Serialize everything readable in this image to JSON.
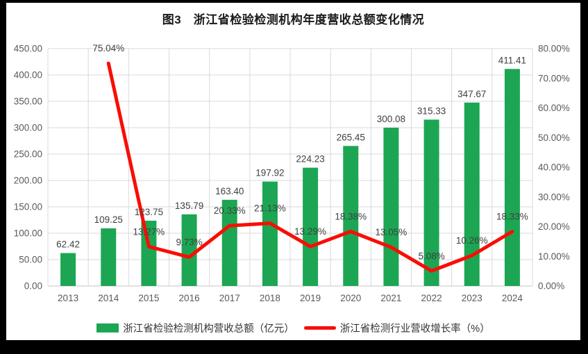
{
  "frame": {
    "background": "#000000",
    "panel_background": "#ffffff"
  },
  "title": "图3　浙江省检验检测机构年度营收总额变化情况",
  "colors": {
    "bar": "#1CA653",
    "line": "#F90D05",
    "grid": "#D9D9D9",
    "grid_base": "#C6C6C6",
    "axis_text": "#595959",
    "data_label_text": "#404040",
    "title_text": "#1a1a1a",
    "legend_text": "#333333"
  },
  "chart_data": {
    "type": "bar+line combo",
    "title": "图3　浙江省检验检测机构年度营收总额变化情况",
    "categories": [
      "2013",
      "2014",
      "2015",
      "2016",
      "2017",
      "2018",
      "2019",
      "2020",
      "2021",
      "2022",
      "2023",
      "2024"
    ],
    "series": [
      {
        "name": "浙江省检验检测机构营收总额（亿元）",
        "type": "bar",
        "axis": "left",
        "values": [
          62.42,
          109.25,
          123.75,
          135.79,
          163.4,
          197.92,
          224.23,
          265.45,
          300.08,
          315.33,
          347.67,
          411.41
        ],
        "labels": [
          "62.42",
          "109.25",
          "123.75",
          "135.79",
          "163.40",
          "197.92",
          "224.23",
          "265.45",
          "300.08",
          "315.33",
          "347.67",
          "411.41"
        ]
      },
      {
        "name": "浙江省检测行业营收增长率（%）",
        "type": "line",
        "axis": "right",
        "values": [
          null,
          75.04,
          13.27,
          9.73,
          20.33,
          21.13,
          13.29,
          18.38,
          13.05,
          5.08,
          10.26,
          18.33
        ],
        "labels": [
          null,
          "75.04%",
          "13.27%",
          "9.73%",
          "20.33%",
          "21.13%",
          "13.29%",
          "18.38%",
          "13.05%",
          "5.08%",
          "10.26%",
          "18.33%"
        ]
      }
    ],
    "left_axis": {
      "min": 0,
      "max": 450,
      "step": 50,
      "tick_labels": [
        "0.00",
        "50.00",
        "100.00",
        "150.00",
        "200.00",
        "250.00",
        "300.00",
        "350.00",
        "400.00",
        "450.00"
      ]
    },
    "right_axis": {
      "min": 0,
      "max": 80,
      "step": 10,
      "tick_labels": [
        "0.00%",
        "10.00%",
        "20.00%",
        "30.00%",
        "40.00%",
        "50.00%",
        "60.00%",
        "70.00%",
        "80.00%"
      ]
    },
    "grid": "horizontal lines at left-axis ticks, vertical lines at category boundaries",
    "legend_position": "bottom"
  },
  "legend": {
    "items": [
      {
        "label": "浙江省检验检测机构营收总额（亿元）",
        "marker": "rect"
      },
      {
        "label": "浙江省检测行业营收增长率（%）",
        "marker": "line"
      }
    ]
  }
}
